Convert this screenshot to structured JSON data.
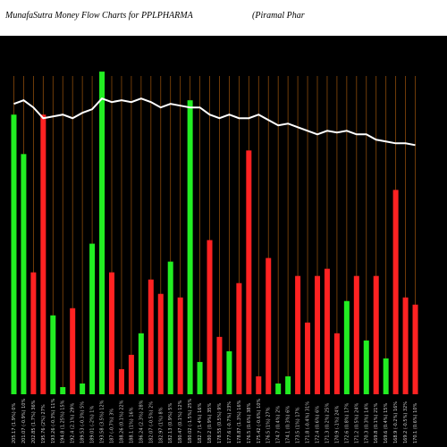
{
  "header": {
    "title": "MunafaSutra  Money Flow  Charts for PPLPHARMA",
    "subtitle": "(Piramal Phar"
  },
  "chart_data": {
    "type": "bar",
    "title": "MunafaSutra  Money Flow  Charts for PPLPHARMA",
    "colors": {
      "up": "#22ee22",
      "down": "#ff2222",
      "line": "#ffffff",
      "grid": "#8a4a0a",
      "background": "#000000"
    },
    "categories": [
      "205.17 (1.9%) 0%",
      "201.07 (-0.9%) 10%",
      "202.85 (1.7%) 36%",
      "195.76 (2%) 27%",
      "193.26 (-0.3%) 11%",
      "194.8 (1.25%) 15%",
      "192.4 (2.1%) 29%",
      "189.53 (-0.3%) 5%",
      "189.01 (-2%) 1%",
      "193.58 (3.5%) 12%",
      "187 (-0.7%) 3%",
      "188.26 (0.1%) 22%",
      "188.1 (1%) 16%",
      "186.24 (2.3%) 28%",
      "182.07 (-0.5%) 2%",
      "182.97 (1%) 8%",
      "182.13 (0.9%) 5%",
      "180.47 (0.1%) 12%",
      "180.02 (-1.5%) 25%",
      "182.7 (1.4%) 16%",
      "180.2 (0.9%) 35%",
      "178.55 (0.5%) 9%",
      "177.6 (-0.7%) 23%",
      "178.87 (1.3%) 16%",
      "176.5 (0.6%) 38%",
      "175.42 (-0.6%) 10%",
      "176.5 (1%) 27%",
      "174.7 (0.4%) 2%",
      "174.1 (0.3%) 6%",
      "173.5 (1%) 17%",
      "171.8 (-0.4%) 31%",
      "172.4 (0.6%) 6%",
      "171.3 (0.2%) 25%",
      "170.9 (-1%) 24%",
      "172.6 (0.8%) 17%",
      "171.2 (0.5%) 24%",
      "170.3 (0.3%) 14%",
      "169.8 (0.1%) 21%",
      "169.6 (0.4%) 15%",
      "168.9 (-0.2%) 16%",
      "169.2 (-0.5%) 32%",
      "170.1 (0.6%) 10%"
    ],
    "values": [
      78,
      67,
      34,
      78,
      22,
      2,
      24,
      3,
      42,
      90,
      34,
      7,
      11,
      17,
      32,
      28,
      37,
      27,
      82,
      9,
      43,
      16,
      12,
      31,
      68,
      5,
      38,
      3,
      5,
      33,
      20,
      33,
      35,
      17,
      26,
      33,
      15,
      33,
      10,
      57,
      27,
      25
    ],
    "directions": [
      "up",
      "up",
      "down",
      "down",
      "up",
      "up",
      "down",
      "up",
      "up",
      "up",
      "down",
      "down",
      "down",
      "up",
      "down",
      "down",
      "up",
      "down",
      "up",
      "up",
      "down",
      "down",
      "up",
      "down",
      "down",
      "down",
      "down",
      "up",
      "up",
      "down",
      "down",
      "down",
      "down",
      "down",
      "up",
      "down",
      "up",
      "down",
      "up",
      "down",
      "down",
      "down"
    ],
    "price_line": [
      81,
      82,
      80,
      77,
      77.5,
      78,
      77,
      78.5,
      79.5,
      82.5,
      81.5,
      82,
      81.5,
      82.5,
      81.5,
      80,
      81,
      80.5,
      80,
      80,
      78,
      77,
      78,
      77,
      77,
      78,
      76.5,
      75,
      75.5,
      74.5,
      73.5,
      72.5,
      73.5,
      73,
      73.5,
      72.5,
      72.5,
      71,
      70.5,
      70,
      70,
      69.5
    ],
    "ylim": [
      0,
      100
    ],
    "grid": true,
    "legend": "none"
  }
}
